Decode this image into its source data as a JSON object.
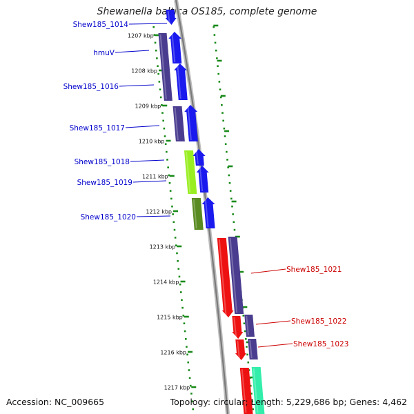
{
  "title": "Shewanella baltica OS185, complete genome",
  "footer": {
    "accession_label": "Accession:",
    "accession": "NC_009665",
    "topology_label": "Topology:",
    "topology": "circular",
    "length_label": "Length:",
    "length": "5,229,686 bp",
    "genes_label": "Genes:",
    "genes": "4,462"
  },
  "colors": {
    "ruler_tick": "#1a8a1a",
    "backbone": "#888888",
    "label_left": "#0000cc",
    "label_right": "#cc0000",
    "gene_blue": "#1a1aee",
    "gene_navy": "#4a3d8f",
    "gene_red": "#ee1111",
    "gene_green_light": "#99ee22",
    "gene_green_dark": "#5a8a22",
    "gene_mint": "#33eeaa"
  },
  "ruler": {
    "ticks": [
      "1207 kbp",
      "1208 kbp",
      "1209 kbp",
      "1210 kbp",
      "1211 kbp",
      "1212 kbp",
      "1213 kbp",
      "1214 kbp",
      "1215 kbp",
      "1216 kbp",
      "1217 kbp"
    ]
  },
  "genes_left": [
    {
      "label": "Shew185_1014"
    },
    {
      "label": "hmuV"
    },
    {
      "label": "Shew185_1016"
    },
    {
      "label": "Shew185_1017"
    },
    {
      "label": "Shew185_1018"
    },
    {
      "label": "Shew185_1019"
    },
    {
      "label": "Shew185_1020"
    }
  ],
  "genes_right": [
    {
      "label": "Shew185_1021"
    },
    {
      "label": "Shew185_1022"
    },
    {
      "label": "Shew185_1023"
    }
  ]
}
